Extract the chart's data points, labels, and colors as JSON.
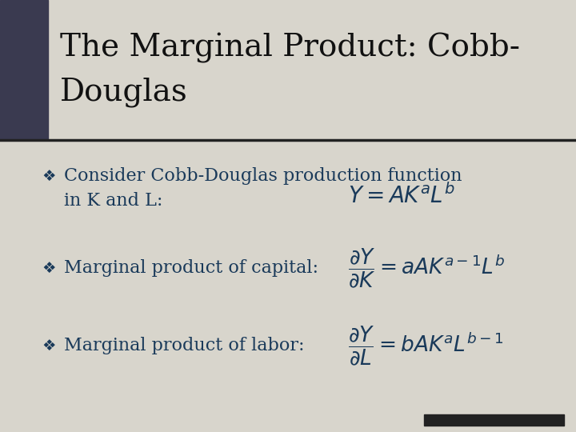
{
  "bg_color": "#d8d5cc",
  "title_bg_color": "#d8d5cc",
  "left_accent_color": "#3a3a50",
  "separator_color": "#222222",
  "text_color": "#1a3a5a",
  "title_color": "#111111",
  "bottom_bar_color": "#222222",
  "title_text_line1": "The Marginal Product: Cobb-",
  "title_text_line2": "Douglas",
  "title_fontsize": 28,
  "body_fontsize": 16,
  "formula_fontsize": 16,
  "bullet": "❖",
  "item1_text_line1": "Consider Cobb-Douglas production function",
  "item1_text_line2": "in K and L:",
  "item1_formula": "$Y = AK^{a}L^{b}$",
  "item2_text": "Marginal product of capital:",
  "item2_formula": "$\\dfrac{\\partial Y}{\\partial K} = aAK^{a-1}L^{b}$",
  "item3_text": "Marginal product of labor:",
  "item3_formula": "$\\dfrac{\\partial Y}{\\partial L} = bAK^{a}L^{b-1}$"
}
